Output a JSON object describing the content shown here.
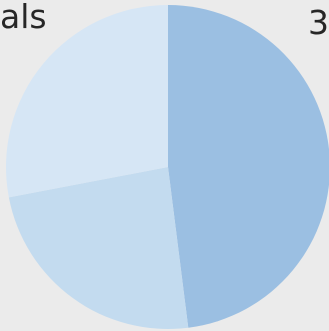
{
  "labels": {
    "top_left": "als",
    "top_right": "3"
  },
  "chart_data": {
    "type": "pie",
    "categories": [
      "",
      "",
      ""
    ],
    "values": [
      48,
      24,
      28
    ],
    "colors": [
      "#9bbfe2",
      "#c3dbef",
      "#d6e6f5"
    ],
    "start": "top",
    "direction": "clockwise"
  }
}
